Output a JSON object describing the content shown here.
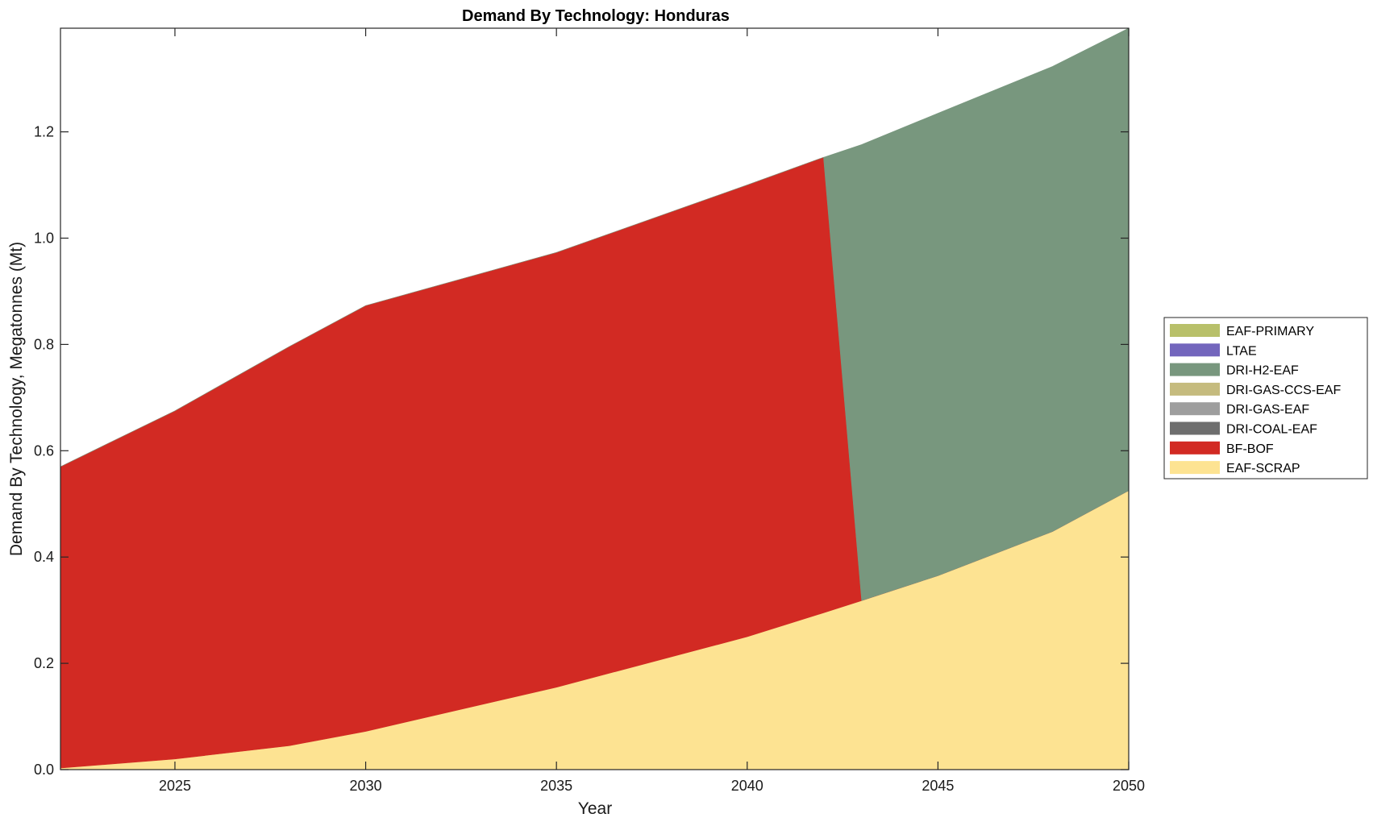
{
  "chart_data": {
    "type": "area",
    "stacked": true,
    "title": "Demand By Technology: Honduras",
    "xlabel": "Year",
    "ylabel": "Demand By Technology, Megatonnes (Mt)",
    "xlim": [
      2022,
      2050
    ],
    "ylim": [
      0,
      1.395
    ],
    "xticks": [
      2025,
      2030,
      2035,
      2040,
      2045,
      2050
    ],
    "xtick_labels": [
      "2025",
      "2030",
      "2035",
      "2040",
      "2045",
      "2050"
    ],
    "yticks": [
      0,
      0.2,
      0.4,
      0.6,
      0.8,
      1.0,
      1.2
    ],
    "ytick_labels": [
      "0.0",
      "0.2",
      "0.4",
      "0.6",
      "0.8",
      "1.0",
      "1.2"
    ],
    "grid": false,
    "legend_position": "right",
    "x": [
      2022,
      2025,
      2028,
      2030,
      2035,
      2040,
      2042,
      2043,
      2045,
      2048,
      2050
    ],
    "series": [
      {
        "name": "EAF-SCRAP",
        "color": "#fde392",
        "values": [
          0.003,
          0.02,
          0.045,
          0.072,
          0.155,
          0.25,
          0.295,
          0.318,
          0.365,
          0.448,
          0.525
        ]
      },
      {
        "name": "BF-BOF",
        "color": "#d22a23",
        "values": [
          0.567,
          0.655,
          0.751,
          0.801,
          0.818,
          0.85,
          0.857,
          0,
          0,
          0,
          0
        ]
      },
      {
        "name": "DRI-COAL-EAF",
        "color": "#6e6e6e",
        "values": [
          0,
          0,
          0,
          0,
          0,
          0,
          0,
          0,
          0,
          0,
          0
        ]
      },
      {
        "name": "DRI-GAS-EAF",
        "color": "#9e9e9e",
        "values": [
          0,
          0,
          0,
          0,
          0,
          0,
          0,
          0,
          0,
          0,
          0
        ]
      },
      {
        "name": "DRI-GAS-CCS-EAF",
        "color": "#c5bb7e",
        "values": [
          0,
          0,
          0,
          0,
          0,
          0,
          0,
          0,
          0,
          0,
          0
        ]
      },
      {
        "name": "DRI-H2-EAF",
        "color": "#78977e",
        "values": [
          0,
          0,
          0,
          0,
          0,
          0,
          0,
          0.858,
          0.87,
          0.875,
          0.87
        ]
      },
      {
        "name": "LTAE",
        "color": "#7366bd",
        "values": [
          0,
          0,
          0,
          0,
          0,
          0,
          0,
          0,
          0,
          0,
          0
        ]
      },
      {
        "name": "EAF-PRIMARY",
        "color": "#b8c06a",
        "values": [
          0,
          0,
          0,
          0,
          0,
          0,
          0,
          0,
          0,
          0,
          0
        ]
      }
    ],
    "legend_order": [
      "EAF-PRIMARY",
      "LTAE",
      "DRI-H2-EAF",
      "DRI-GAS-CCS-EAF",
      "DRI-GAS-EAF",
      "DRI-COAL-EAF",
      "BF-BOF",
      "EAF-SCRAP"
    ]
  }
}
